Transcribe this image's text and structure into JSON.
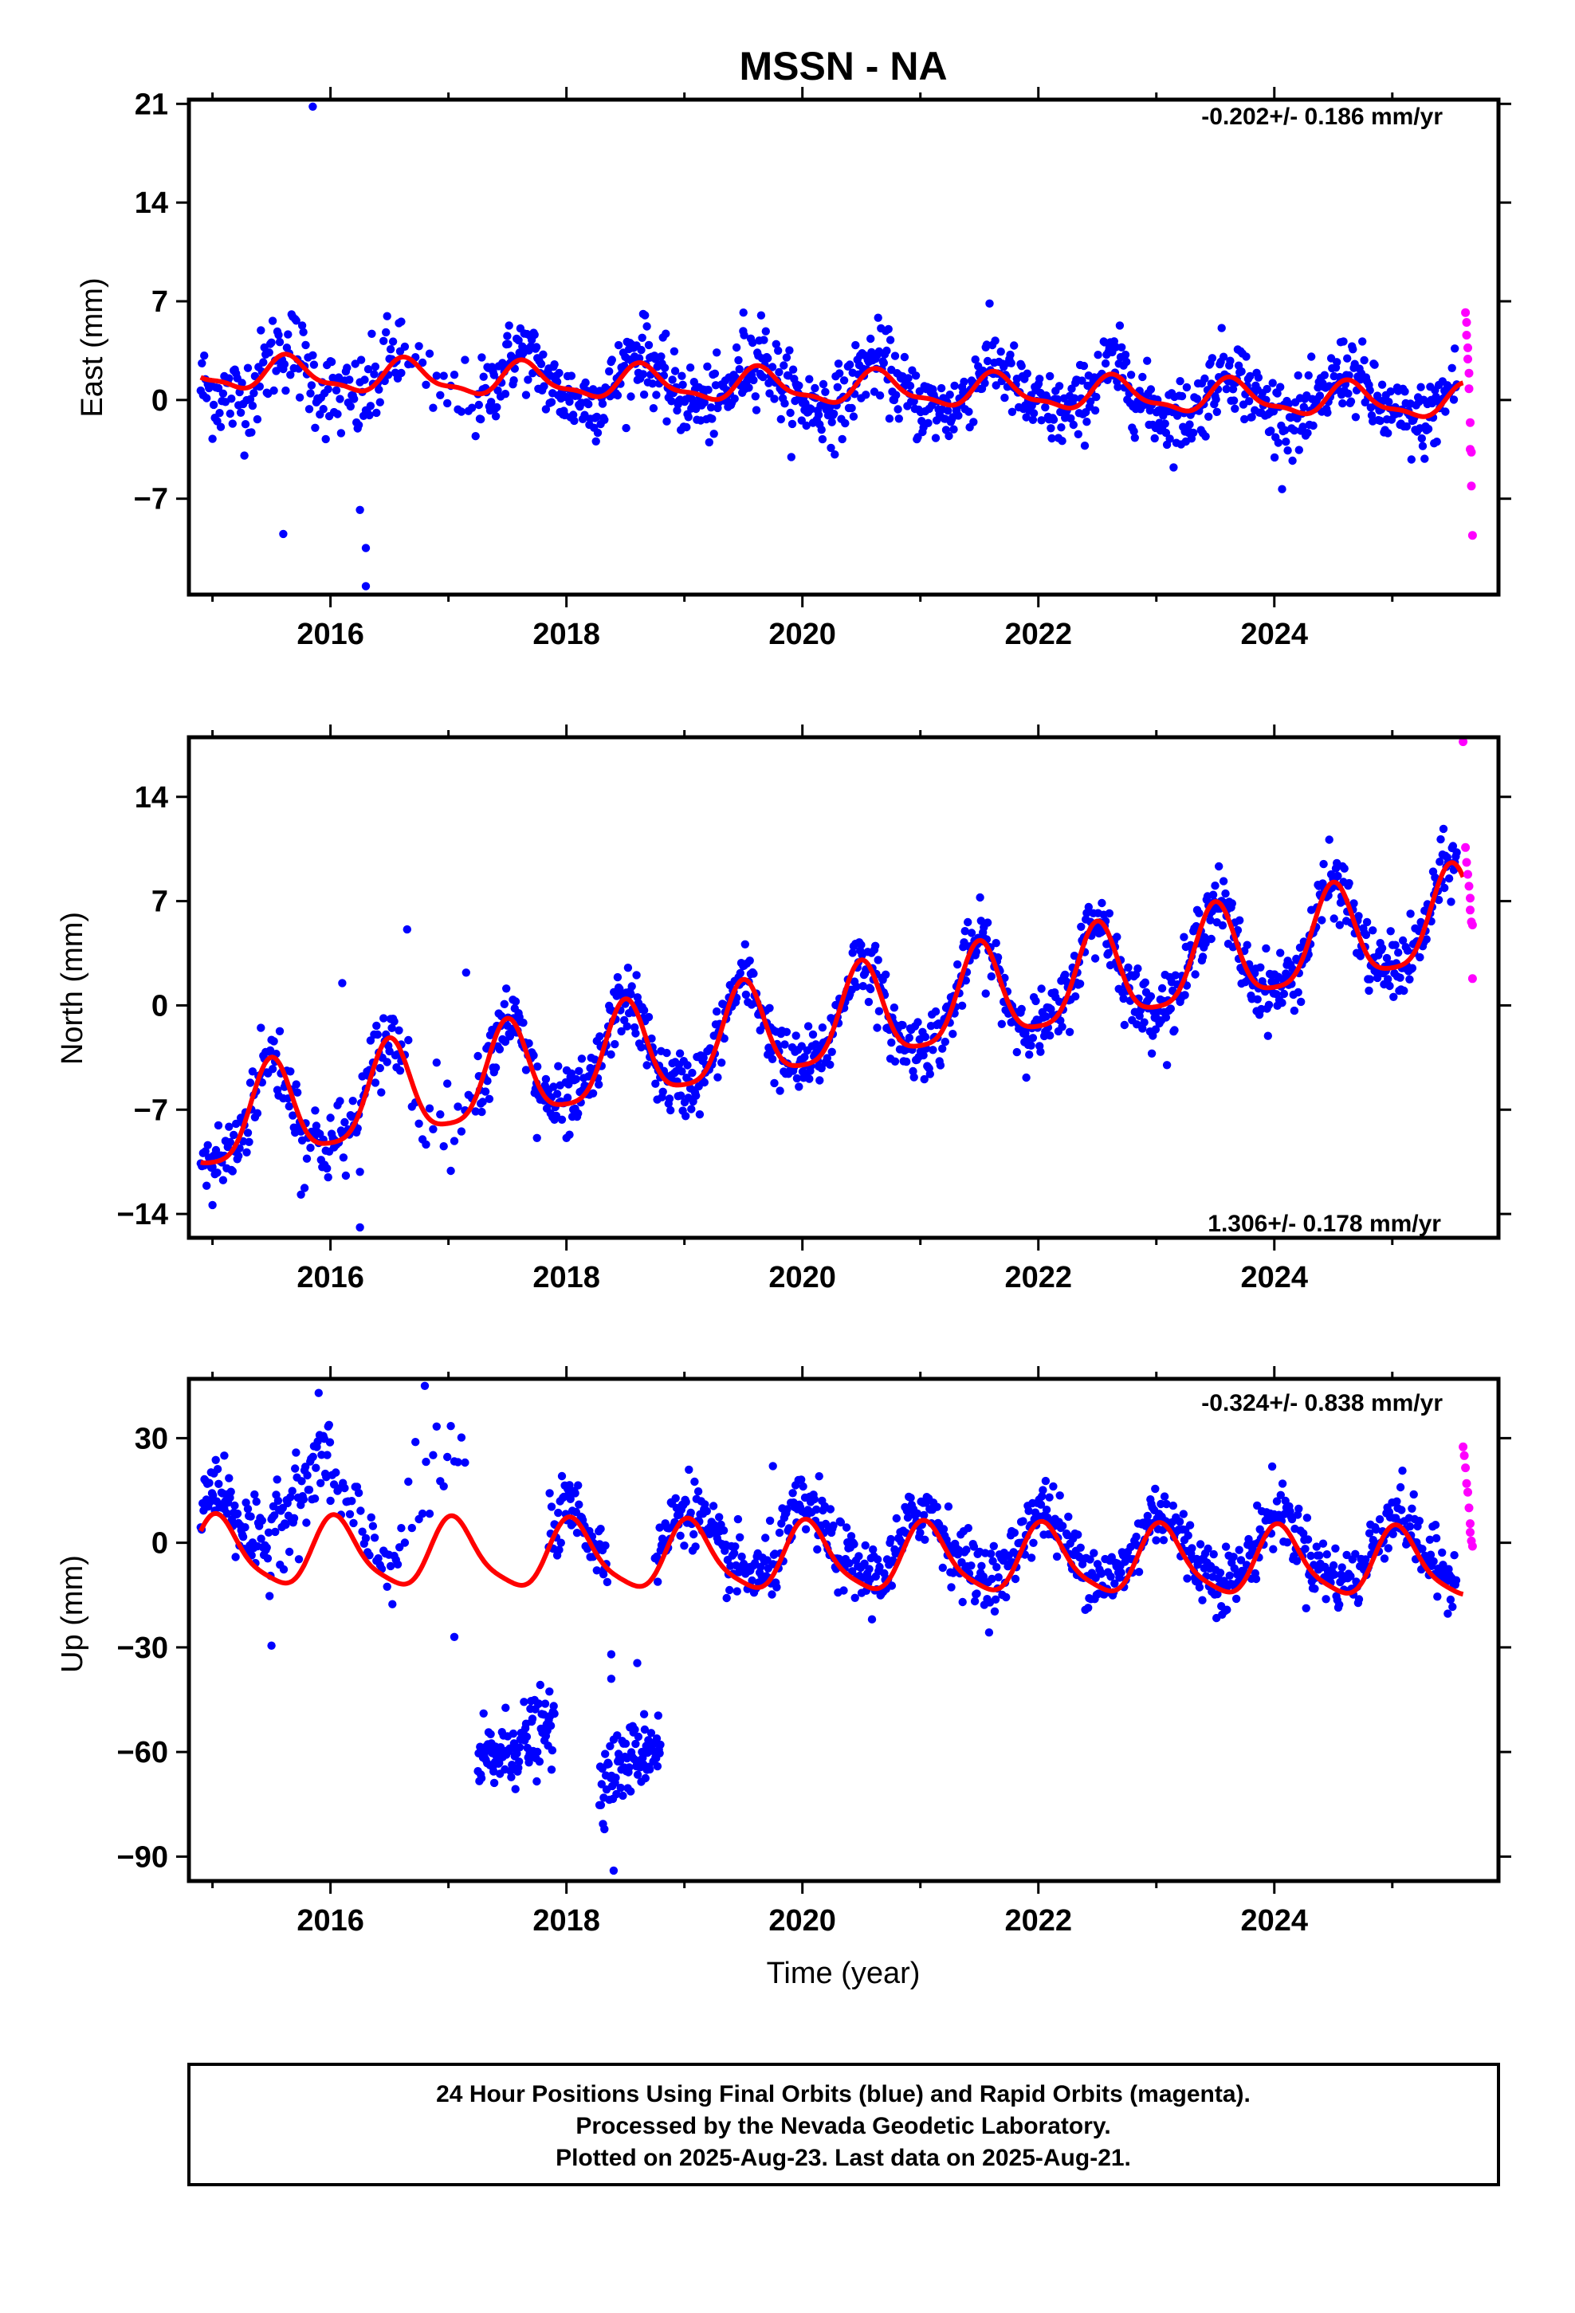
{
  "title": "MSSN - NA",
  "footer": {
    "line1": "24 Hour Positions Using Final Orbits (blue) and Rapid Orbits (magenta).",
    "line2": "Processed by the Nevada Geodetic Laboratory.",
    "line3": "Plotted on 2025-Aug-23. Last data on 2025-Aug-21."
  },
  "colors": {
    "final": "#0000ff",
    "rapid": "#ff00ff",
    "model": "#ff0000",
    "frame": "#000000"
  },
  "chart_data": [
    {
      "type": "scatter",
      "component": "east",
      "ylabel": "East (mm)",
      "xlabel": "",
      "rate": "-0.202+/- 0.186 mm/yr",
      "rate_position": "top-right",
      "xlim": [
        2014.8,
        2025.9
      ],
      "ylim": [
        -13.8,
        21.3
      ],
      "xticks": [
        2016,
        2018,
        2020,
        2022,
        2024
      ],
      "xtick_labels": [
        "2016",
        "2018",
        "2020",
        "2022",
        "2024"
      ],
      "yticks": [
        -7,
        0,
        7,
        14,
        21
      ],
      "ytick_labels": [
        "−7",
        "0",
        "7",
        "14",
        "21"
      ],
      "grid": false,
      "model": {
        "offset": 0.9,
        "trend": -0.202,
        "t0": 2020.0,
        "annual_amp": 1.1,
        "annual_peak": 0.65,
        "semi_amp": 0.4,
        "semi_peak": 0.6,
        "segments": [
          [
            2014.9,
            2025.6
          ]
        ]
      },
      "final_segments": [
        {
          "start": 2014.9,
          "end": 2016.6,
          "step": 0.01,
          "offset": -0.2,
          "noise": 1.6,
          "peak_bias": 0.8
        },
        {
          "start": 2016.6,
          "end": 2017.25,
          "step": 0.03,
          "offset": -0.6,
          "noise": 1.4,
          "peak_bias": 0.0
        },
        {
          "start": 2017.25,
          "end": 2025.55,
          "step": 0.008,
          "offset": 0.0,
          "noise": 1.3,
          "peak_bias": 0.6
        }
      ],
      "outliers": [
        [
          2015.85,
          20.8
        ],
        [
          2015.6,
          -9.5
        ],
        [
          2016.3,
          -10.5
        ],
        [
          2016.3,
          -13.2
        ],
        [
          2016.25,
          -7.8
        ],
        [
          2019.5,
          6.2
        ],
        [
          2019.65,
          6.0
        ],
        [
          2018.65,
          6.1
        ]
      ],
      "rapid": {
        "x": [
          2025.62,
          2025.63,
          2025.63,
          2025.64,
          2025.64,
          2025.65,
          2025.65,
          2025.66,
          2025.66,
          2025.67,
          2025.67,
          2025.68
        ],
        "y": [
          6.2,
          5.5,
          4.6,
          3.7,
          2.9,
          1.9,
          0.8,
          -1.6,
          -3.5,
          -3.7,
          -6.1,
          -9.6
        ]
      }
    },
    {
      "type": "scatter",
      "component": "north",
      "ylabel": "North (mm)",
      "xlabel": "",
      "rate": "1.306+/- 0.178 mm/yr",
      "rate_position": "bottom-right",
      "xlim": [
        2014.8,
        2025.9
      ],
      "ylim": [
        -15.6,
        18.0
      ],
      "xticks": [
        2016,
        2018,
        2020,
        2022,
        2024
      ],
      "xtick_labels": [
        "2016",
        "2018",
        "2020",
        "2022",
        "2024"
      ],
      "yticks": [
        -14,
        -7,
        0,
        7,
        14
      ],
      "ytick_labels": [
        "−14",
        "−7",
        "0",
        "7",
        "14"
      ],
      "grid": false,
      "model": {
        "offset": -1.5,
        "trend": 1.306,
        "t0": 2020.0,
        "annual_amp": 3.2,
        "annual_peak": 0.5,
        "semi_amp": 0.7,
        "semi_peak": 0.5,
        "segments": [
          [
            2014.9,
            2025.6
          ]
        ]
      },
      "final_segments": [
        {
          "start": 2014.9,
          "end": 2016.6,
          "step": 0.01,
          "offset": 0.0,
          "noise": 1.4,
          "peak_bias": 0.0
        },
        {
          "start": 2016.6,
          "end": 2017.25,
          "step": 0.03,
          "offset": 0.5,
          "noise": 1.5,
          "peak_bias": 0.0
        },
        {
          "start": 2017.25,
          "end": 2025.55,
          "step": 0.008,
          "offset": 0.0,
          "noise": 1.1,
          "peak_bias": 0.0
        }
      ],
      "outliers": [
        [
          2015.0,
          -13.4
        ],
        [
          2015.75,
          -12.7
        ],
        [
          2016.25,
          -14.9
        ],
        [
          2016.65,
          5.1
        ],
        [
          2016.1,
          1.5
        ],
        [
          2017.15,
          2.2
        ],
        [
          2018.0,
          -8.9
        ],
        [
          2017.75,
          -8.9
        ]
      ],
      "rapid": {
        "x": [
          2025.6,
          2025.62,
          2025.63,
          2025.64,
          2025.65,
          2025.66,
          2025.66,
          2025.67,
          2025.68,
          2025.68
        ],
        "y": [
          17.7,
          10.6,
          9.6,
          8.8,
          8.0,
          7.2,
          6.4,
          5.6,
          5.4,
          1.8
        ]
      }
    },
    {
      "type": "scatter",
      "component": "up",
      "ylabel": "Up (mm)",
      "xlabel": "Time (year)",
      "rate": "-0.324+/- 0.838 mm/yr",
      "rate_position": "top-right",
      "xlim": [
        2014.8,
        2025.9
      ],
      "ylim": [
        -97,
        47
      ],
      "xticks": [
        2016,
        2018,
        2020,
        2022,
        2024
      ],
      "xtick_labels": [
        "2016",
        "2018",
        "2020",
        "2022",
        "2024"
      ],
      "yticks": [
        -90,
        -60,
        -30,
        0,
        30
      ],
      "ytick_labels": [
        "−90",
        "−60",
        "−30",
        "0",
        "30"
      ],
      "grid": false,
      "model": {
        "offset": -4.5,
        "trend": -0.324,
        "t0": 2020.0,
        "annual_amp": 9.5,
        "annual_peak": 0.05,
        "semi_amp": 2.0,
        "semi_peak": 0.0,
        "segments": [
          [
            2014.9,
            2025.6
          ]
        ]
      },
      "final_segments": [
        {
          "start": 2014.9,
          "end": 2015.5,
          "step": 0.008,
          "offset": 7.0,
          "noise": 5.0,
          "peak_bias": 0.0
        },
        {
          "start": 2015.5,
          "end": 2016.0,
          "step": 0.008,
          "offset": 21.0,
          "noise": 6.5,
          "peak_bias": 0.0
        },
        {
          "start": 2016.0,
          "end": 2016.6,
          "step": 0.015,
          "offset": 6.0,
          "noise": 6.0,
          "peak_bias": 0.0
        },
        {
          "start": 2016.6,
          "end": 2017.15,
          "step": 0.03,
          "offset": 18.0,
          "noise": 7.0,
          "peak_bias": 0.0
        },
        {
          "start": 2017.25,
          "end": 2017.9,
          "step": 0.006,
          "offset": -64.0,
          "noise": 5.5,
          "slope": 18.0,
          "peak_bias": 0.0,
          "absolute": true
        },
        {
          "start": 2017.85,
          "end": 2018.35,
          "step": 0.008,
          "offset": 2.5,
          "noise": 4.8,
          "peak_bias": 0.0
        },
        {
          "start": 2018.28,
          "end": 2018.8,
          "step": 0.006,
          "offset": -68.0,
          "noise": 5.0,
          "slope": 22.0,
          "peak_bias": 0.0,
          "absolute": true
        },
        {
          "start": 2018.75,
          "end": 2025.55,
          "step": 0.008,
          "offset": 3.5,
          "noise": 4.8,
          "peak_bias": 0.0
        }
      ],
      "outliers": [
        [
          2016.8,
          45.0
        ],
        [
          2015.5,
          -29.5
        ],
        [
          2017.05,
          -27.0
        ],
        [
          2018.38,
          -32.0
        ],
        [
          2018.38,
          -39.0
        ],
        [
          2018.6,
          -34.5
        ],
        [
          2018.4,
          -94.0
        ],
        [
          2019.75,
          22.0
        ],
        [
          2015.1,
          25.0
        ]
      ],
      "rapid": {
        "x": [
          2025.6,
          2025.61,
          2025.62,
          2025.63,
          2025.64,
          2025.65,
          2025.66,
          2025.66,
          2025.67,
          2025.68
        ],
        "y": [
          27.5,
          25.0,
          21.5,
          17.0,
          14.5,
          10.0,
          5.5,
          3.0,
          0.5,
          -1.0
        ]
      }
    }
  ]
}
